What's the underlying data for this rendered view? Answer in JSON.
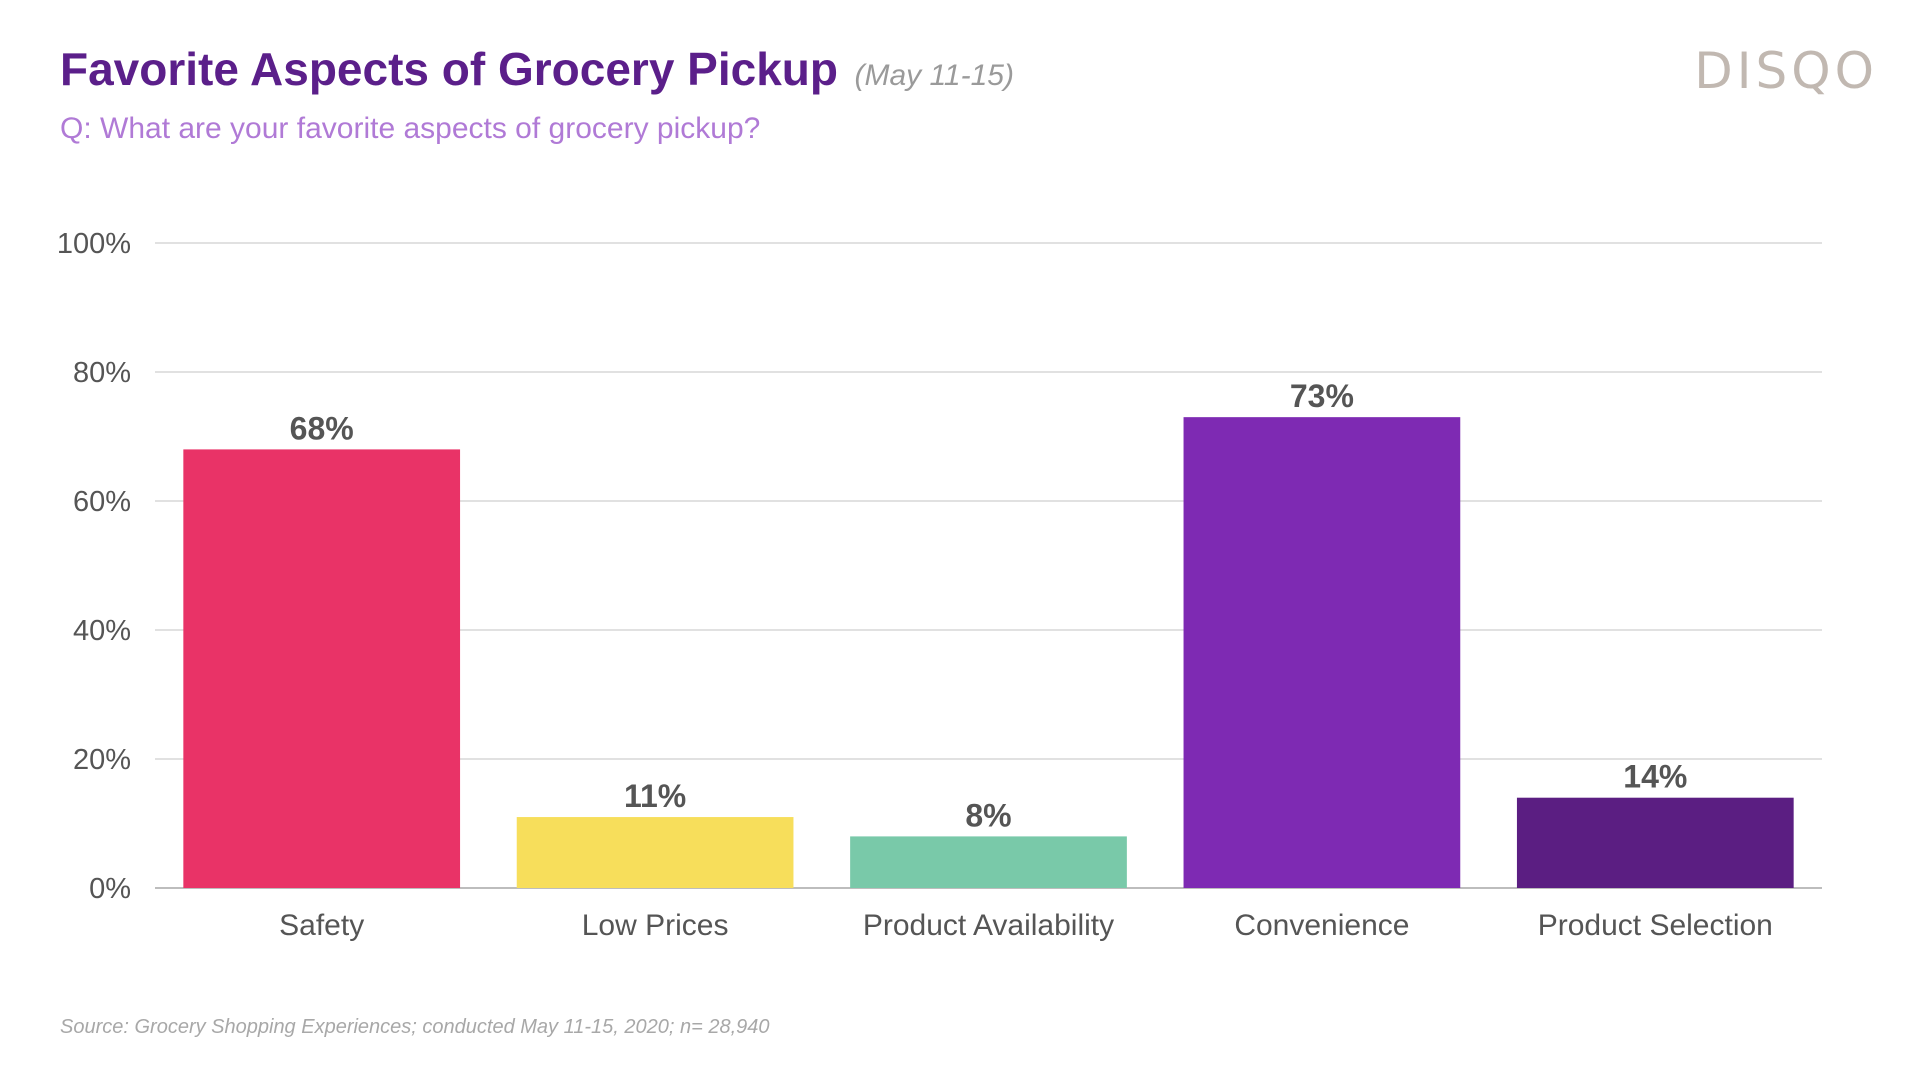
{
  "header": {
    "title": "Favorite Aspects of Grocery Pickup",
    "date_range": "(May 11-15)",
    "subtitle": "Q: What are your favorite aspects of grocery pickup?",
    "logo": "DISQO"
  },
  "footer": {
    "source": "Source: Grocery Shopping Experiences; conducted May 11-15, 2020; n= 28,940"
  },
  "colors": {
    "title": "#5b1f8a",
    "subtitle": "#b07ad6",
    "gridline": "#cfcfcf",
    "axis": "#bdbdbd"
  },
  "chart_data": {
    "type": "bar",
    "title": "Favorite Aspects of Grocery Pickup",
    "xlabel": "",
    "ylabel": "",
    "ylim": [
      0,
      100
    ],
    "y_ticks": [
      0,
      20,
      40,
      60,
      80,
      100
    ],
    "y_tick_labels": [
      "0%",
      "20%",
      "40%",
      "60%",
      "80%",
      "100%"
    ],
    "grid": true,
    "categories": [
      "Safety",
      "Low Prices",
      "Product Availability",
      "Convenience",
      "Product Selection"
    ],
    "values": [
      68,
      11,
      8,
      73,
      14
    ],
    "value_labels": [
      "68%",
      "11%",
      "8%",
      "73%",
      "14%"
    ],
    "bar_colors": [
      "#e93367",
      "#f7de5b",
      "#79c9a9",
      "#7e2ab3",
      "#5b1e82"
    ]
  }
}
